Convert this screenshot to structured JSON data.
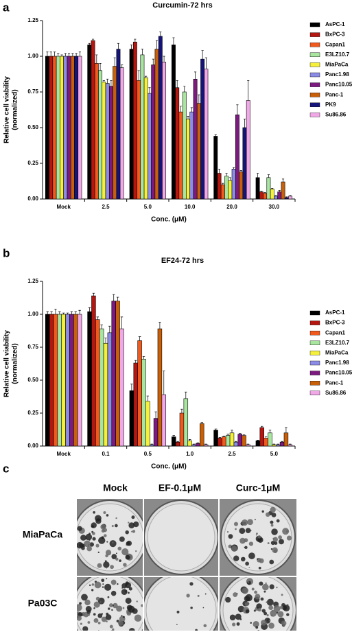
{
  "panel_labels": [
    "a",
    "b",
    "c"
  ],
  "chart_data": [
    {
      "type": "bar",
      "title": "Curcumin-72 hrs",
      "xlabel": "Conc. (μM)",
      "ylabel": [
        "Relative cell viability",
        "(normalized)"
      ],
      "categories": [
        "Mock",
        "2.5",
        "5.0",
        "10.0",
        "20.0",
        "30.0"
      ],
      "ylim": [
        0,
        1.25
      ],
      "yticks": [
        {
          "value": 0,
          "label": "0.00"
        },
        {
          "value": 0.25,
          "label": "0.25"
        },
        {
          "value": 0.5,
          "label": "0.50"
        },
        {
          "value": 0.75,
          "label": "0.75"
        },
        {
          "value": 1,
          "label": "1.00"
        },
        {
          "value": 1.25,
          "label": "1.25"
        }
      ],
      "series": [
        {
          "name": "AsPC-1",
          "color": "#000000",
          "values": [
            1.0,
            1.08,
            1.05,
            1.08,
            0.44,
            0.15
          ],
          "errors": [
            0.03,
            0.01,
            0.03,
            0.05,
            0.01,
            0.03
          ]
        },
        {
          "name": "BxPC-3",
          "color": "#b5160f",
          "values": [
            1.0,
            1.11,
            1.1,
            0.78,
            0.18,
            0.05
          ],
          "errors": [
            0.03,
            0.01,
            0.02,
            0.05,
            0.03,
            0.005
          ]
        },
        {
          "name": "Capan1",
          "color": "#f05a1e",
          "values": [
            1.0,
            0.95,
            0.83,
            0.61,
            0.1,
            0.04
          ],
          "errors": [
            0.03,
            0.06,
            0.07,
            0.04,
            0.01,
            0.005
          ]
        },
        {
          "name": "E3LZ10.7",
          "color": "#a8e6a0",
          "values": [
            1.0,
            0.9,
            1.01,
            0.75,
            0.16,
            0.15
          ],
          "errors": [
            0.02,
            0.05,
            0.04,
            0.04,
            0.02,
            0.02
          ]
        },
        {
          "name": "MiaPaCa",
          "color": "#f5f03c",
          "values": [
            1.0,
            0.82,
            0.85,
            0.56,
            0.13,
            0.07
          ],
          "errors": [
            0.01,
            0.01,
            0.01,
            0.02,
            0.02,
            0.005
          ]
        },
        {
          "name": "Panc1.98",
          "color": "#8c8ce6",
          "values": [
            1.0,
            0.81,
            0.74,
            0.61,
            0.21,
            0.02
          ],
          "errors": [
            0.02,
            0.03,
            0.04,
            0.03,
            0.01,
            0.005
          ]
        },
        {
          "name": "Panc10.05",
          "color": "#7d1a80",
          "values": [
            1.0,
            0.79,
            0.94,
            0.84,
            0.59,
            0.05
          ],
          "errors": [
            0.02,
            0.04,
            0.04,
            0.05,
            0.07,
            0.01
          ]
        },
        {
          "name": "Panc-1",
          "color": "#c8600a",
          "values": [
            1.0,
            0.93,
            1.05,
            0.67,
            0.19,
            0.12
          ],
          "errors": [
            0.02,
            0.06,
            0.06,
            0.06,
            0.01,
            0.02
          ]
        },
        {
          "name": "PK9",
          "color": "#14147a",
          "values": [
            1.0,
            1.05,
            1.14,
            0.98,
            0.5,
            0.01
          ],
          "errors": [
            0.02,
            0.04,
            0.03,
            0.06,
            0.06,
            0.005
          ]
        },
        {
          "name": "Su86.86",
          "color": "#f0a8e6",
          "values": [
            1.0,
            0.92,
            0.96,
            0.91,
            0.69,
            0.02
          ],
          "errors": [
            0.03,
            0.02,
            0.04,
            0.08,
            0.14,
            0.005
          ]
        }
      ]
    },
    {
      "type": "bar",
      "title": "EF24-72 hrs",
      "xlabel": "Conc. (μM)",
      "ylabel": [
        "Relative cell viability",
        "(normalized)"
      ],
      "categories": [
        "Mock",
        "0.1",
        "0.5",
        "1.0",
        "2.5",
        "5.0"
      ],
      "ylim": [
        0,
        1.25
      ],
      "yticks": [
        {
          "value": 0,
          "label": "0.00"
        },
        {
          "value": 0.25,
          "label": "0.25"
        },
        {
          "value": 0.5,
          "label": "0.50"
        },
        {
          "value": 0.75,
          "label": "0.75"
        },
        {
          "value": 1,
          "label": "1.00"
        },
        {
          "value": 1.25,
          "label": "1.25"
        }
      ],
      "series": [
        {
          "name": "AsPC-1",
          "color": "#000000",
          "values": [
            1.0,
            1.02,
            0.42,
            0.07,
            0.12,
            0.04
          ],
          "errors": [
            0.02,
            0.03,
            0.05,
            0.01,
            0.01,
            0.005
          ]
        },
        {
          "name": "BxPC-3",
          "color": "#b5160f",
          "values": [
            1.0,
            1.14,
            0.63,
            0.03,
            0.06,
            0.14
          ],
          "errors": [
            0.02,
            0.02,
            0.02,
            0.005,
            0.005,
            0.01
          ]
        },
        {
          "name": "Capan1",
          "color": "#f05a1e",
          "values": [
            1.0,
            0.96,
            0.8,
            0.25,
            0.07,
            0.06
          ],
          "errors": [
            0.04,
            0.02,
            0.03,
            0.03,
            0.005,
            0.01
          ]
        },
        {
          "name": "E3LZ10.7",
          "color": "#a8e6a0",
          "values": [
            1.0,
            0.89,
            0.66,
            0.36,
            0.08,
            0.1
          ],
          "errors": [
            0.02,
            0.03,
            0.02,
            0.05,
            0.01,
            0.02
          ]
        },
        {
          "name": "MiaPaCa",
          "color": "#f5f03c",
          "values": [
            1.0,
            0.78,
            0.34,
            0.04,
            0.1,
            0.01
          ],
          "errors": [
            0.01,
            0.04,
            0.04,
            0.01,
            0.02,
            0.005
          ]
        },
        {
          "name": "Panc1.98",
          "color": "#8c8ce6",
          "values": [
            1.0,
            0.86,
            0.01,
            0.01,
            0.03,
            0.01
          ],
          "errors": [
            0.01,
            0.05,
            0.005,
            0.005,
            0.005,
            0.005
          ]
        },
        {
          "name": "Panc10.05",
          "color": "#7d1a80",
          "values": [
            1.0,
            1.1,
            0.21,
            0.02,
            0.09,
            0.03
          ],
          "errors": [
            0.02,
            0.05,
            0.05,
            0.005,
            0.005,
            0.005
          ]
        },
        {
          "name": "Panc-1",
          "color": "#c8600a",
          "values": [
            1.0,
            1.1,
            0.89,
            0.17,
            0.08,
            0.1
          ],
          "errors": [
            0.02,
            0.03,
            0.05,
            0.01,
            0.005,
            0.04
          ]
        },
        {
          "name": "Su86.86",
          "color": "#f0a8e6",
          "values": [
            1.0,
            0.89,
            0.39,
            0.01,
            0.01,
            0.01
          ],
          "errors": [
            0.03,
            0.09,
            0.18,
            0.005,
            0.005,
            0.005
          ]
        }
      ]
    }
  ],
  "colony_assay": {
    "columns": [
      "Mock",
      "EF-0.1μM",
      "Curc-1μM"
    ],
    "rows": [
      "MiaPaCa",
      "Pa03C"
    ]
  }
}
